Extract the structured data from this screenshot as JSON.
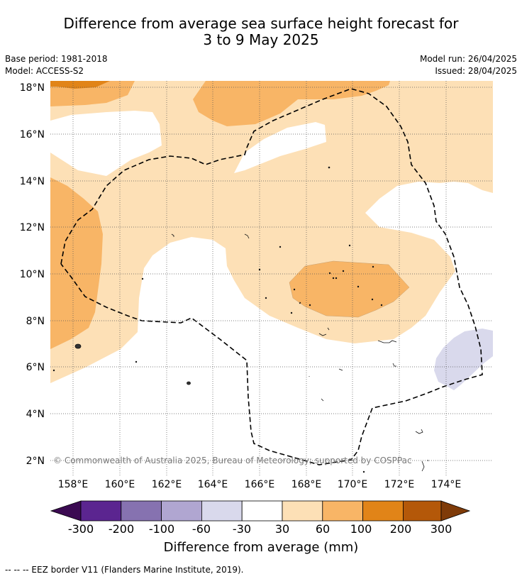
{
  "title_line1": "Difference from average sea surface height forecast for",
  "title_line2": "3 to 9 May 2025",
  "base_period": "Base period: 1981-2018",
  "model": "Model: ACCESS-S2",
  "model_run": "Model run: 26/04/2025",
  "issued": "Issued: 28/04/2025",
  "map": {
    "lat_labels": [
      "18°N",
      "16°N",
      "14°N",
      "12°N",
      "10°N",
      "8°N",
      "6°N",
      "4°N",
      "2°N"
    ],
    "lon_labels": [
      "158°E",
      "160°E",
      "162°E",
      "164°E",
      "166°E",
      "168°E",
      "170°E",
      "172°E",
      "174°E"
    ],
    "copyright": "© Commonwealth of Australia 2025, Bureau of Meteorology; supported by COSPPac",
    "eez_line_style": "dashed black"
  },
  "colorbar": {
    "ticks": [
      "-300",
      "-200",
      "-100",
      "-60",
      "-30",
      "30",
      "60",
      "100",
      "200",
      "300"
    ],
    "colors": [
      "#3b0a52",
      "#5b2590",
      "#8672b0",
      "#b0a6d1",
      "#d9d9ec",
      "#ffffff",
      "#fde0b6",
      "#f8b566",
      "#e18418",
      "#b45809",
      "#7f3b08"
    ],
    "label": "Difference from average (mm)"
  },
  "footer": "-- -- -- EEZ border V11 (Flanders Marine Institute, 2019)."
}
